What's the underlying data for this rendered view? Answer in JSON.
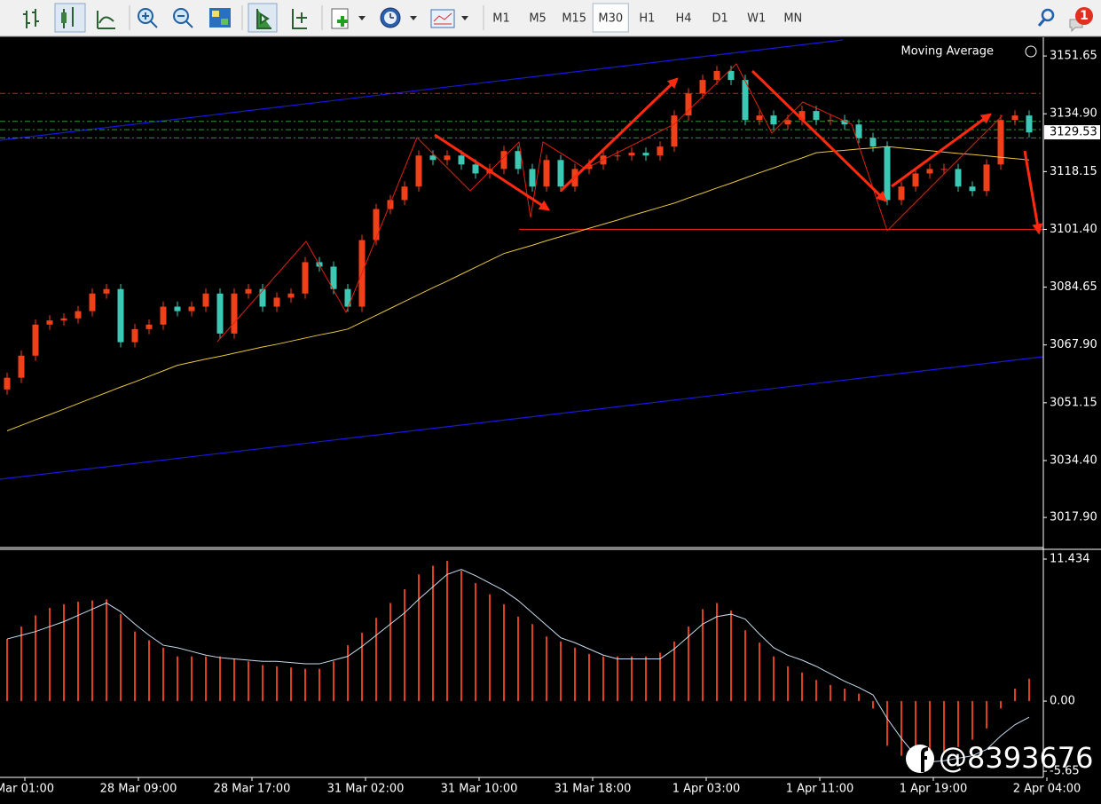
{
  "toolbar": {
    "timeframes": [
      "M1",
      "M5",
      "M15",
      "M30",
      "H1",
      "H4",
      "D1",
      "W1",
      "MN"
    ],
    "active_timeframe": "M30",
    "notifications": 1
  },
  "watermark": "@8393676",
  "chart_data": [
    {
      "type": "candlestick",
      "indicator": "Moving Average",
      "open": [
        3055.0,
        3058.4,
        3064.8,
        3073.8,
        3075.0,
        3075.6,
        3077.7,
        3082.8,
        3084.1,
        3068.7,
        3072.5,
        3073.8,
        3079.0,
        3077.7,
        3079.0,
        3082.8,
        3071.2,
        3082.8,
        3084.1,
        3079.0,
        3081.6,
        3082.8,
        3091.9,
        3090.6,
        3084.1,
        3079.0,
        3098.3,
        3107.3,
        3109.9,
        3113.8,
        3122.8,
        3121.5,
        3122.8,
        3120.2,
        3117.6,
        3118.9,
        3124.1,
        3118.9,
        3113.8,
        3121.5,
        3113.8,
        3118.9,
        3120.2,
        3122.8,
        3122.8,
        3123.6,
        3122.8,
        3125.4,
        3134.4,
        3140.8,
        3144.7,
        3147.3,
        3144.7,
        3133.1,
        3134.4,
        3131.8,
        3133.1,
        3135.7,
        3133.1,
        3133.1,
        3131.8,
        3127.9,
        3125.4,
        3109.9,
        3113.8,
        3117.6,
        3118.9,
        3118.9,
        3113.8,
        3112.5,
        3120.2,
        3133.1,
        3134.4
      ],
      "high": [
        3059.9,
        3066.3,
        3075.3,
        3076.5,
        3077.1,
        3079.2,
        3084.3,
        3085.6,
        3085.6,
        3074.0,
        3075.3,
        3080.5,
        3080.5,
        3080.5,
        3084.3,
        3084.3,
        3084.3,
        3085.6,
        3085.6,
        3083.1,
        3084.3,
        3093.4,
        3093.4,
        3092.1,
        3085.6,
        3099.8,
        3108.8,
        3111.4,
        3115.3,
        3124.3,
        3124.3,
        3124.3,
        3124.3,
        3121.7,
        3120.4,
        3125.6,
        3125.6,
        3120.4,
        3123.0,
        3123.0,
        3120.4,
        3121.7,
        3124.3,
        3124.3,
        3125.1,
        3125.1,
        3126.9,
        3135.9,
        3142.3,
        3146.2,
        3148.8,
        3148.8,
        3146.2,
        3135.9,
        3135.9,
        3134.6,
        3137.2,
        3137.2,
        3134.6,
        3134.6,
        3133.3,
        3129.4,
        3126.9,
        3115.3,
        3119.1,
        3120.4,
        3120.4,
        3120.4,
        3115.3,
        3121.7,
        3134.6,
        3135.9,
        3135.9
      ],
      "low": [
        3053.5,
        3056.9,
        3063.3,
        3072.3,
        3073.5,
        3074.1,
        3076.2,
        3081.3,
        3067.2,
        3067.2,
        3071.0,
        3072.3,
        3076.2,
        3076.2,
        3077.5,
        3069.7,
        3069.7,
        3081.3,
        3077.5,
        3077.5,
        3080.1,
        3081.3,
        3089.1,
        3082.6,
        3077.5,
        3077.5,
        3096.8,
        3105.8,
        3108.4,
        3112.3,
        3120.0,
        3120.0,
        3118.7,
        3116.1,
        3116.1,
        3117.4,
        3117.4,
        3112.3,
        3112.3,
        3112.3,
        3112.3,
        3117.4,
        3118.7,
        3121.3,
        3121.3,
        3121.3,
        3121.3,
        3123.9,
        3132.9,
        3139.3,
        3143.2,
        3143.2,
        3131.6,
        3131.6,
        3130.3,
        3130.3,
        3131.6,
        3131.6,
        3131.6,
        3130.3,
        3126.4,
        3123.9,
        3108.4,
        3108.4,
        3112.3,
        3116.1,
        3117.4,
        3112.3,
        3111.0,
        3111.0,
        3118.7,
        3131.6,
        3128.0
      ],
      "close": [
        3058.4,
        3064.8,
        3073.8,
        3075.0,
        3075.6,
        3077.7,
        3082.8,
        3084.1,
        3068.7,
        3072.5,
        3073.8,
        3079.0,
        3077.7,
        3079.0,
        3082.8,
        3071.2,
        3082.8,
        3084.1,
        3079.0,
        3081.6,
        3082.8,
        3091.9,
        3090.6,
        3084.1,
        3079.0,
        3098.3,
        3107.3,
        3109.9,
        3113.8,
        3122.8,
        3121.5,
        3122.8,
        3120.2,
        3117.6,
        3118.9,
        3124.1,
        3118.9,
        3113.8,
        3121.5,
        3113.8,
        3118.9,
        3120.2,
        3122.8,
        3122.8,
        3123.6,
        3122.8,
        3125.4,
        3134.4,
        3140.8,
        3144.7,
        3147.3,
        3144.7,
        3133.1,
        3134.4,
        3131.8,
        3133.1,
        3135.7,
        3133.1,
        3133.1,
        3131.8,
        3127.9,
        3125.4,
        3109.9,
        3113.8,
        3117.6,
        3118.9,
        3118.9,
        3113.8,
        3112.5,
        3120.2,
        3133.1,
        3134.4,
        3129.5
      ],
      "up_color": "#f0401a",
      "down_color": "#3cc8b4",
      "ma": {
        "color": "#e8c840",
        "values": [
          3043.0,
          3044.6,
          3046.2,
          3047.7,
          3049.3,
          3050.9,
          3052.5,
          3054.1,
          3055.7,
          3057.2,
          3058.8,
          3060.4,
          3062.0,
          3062.9,
          3063.8,
          3064.6,
          3065.5,
          3066.4,
          3067.3,
          3068.1,
          3069.0,
          3069.9,
          3070.8,
          3071.6,
          3072.5,
          3074.5,
          3076.5,
          3078.5,
          3080.5,
          3082.5,
          3084.5,
          3086.4,
          3088.4,
          3090.4,
          3092.4,
          3094.4,
          3095.6,
          3096.8,
          3098.1,
          3099.3,
          3100.5,
          3101.7,
          3102.9,
          3104.1,
          3105.4,
          3106.6,
          3107.8,
          3109.0,
          3110.5,
          3111.9,
          3113.4,
          3114.8,
          3116.3,
          3117.8,
          3119.2,
          3120.7,
          3122.1,
          3123.6,
          3124.0,
          3124.3,
          3124.7,
          3125.0,
          3125.4,
          3125.0,
          3124.6,
          3124.2,
          3123.8,
          3123.4,
          3123.1,
          3122.7,
          3122.3,
          3121.9,
          3121.5
        ]
      },
      "ylim": [
        3009.7,
        3156.3
      ],
      "yticks": [
        3151.65,
        {
          "value": 3134.9,
          "label": "3134.90"
        },
        3118.15,
        {
          "value": 3101.4,
          "label": "3101.40"
        },
        3084.65,
        {
          "value": 3067.9,
          "label": "3067.90"
        },
        3051.15,
        {
          "value": 3034.4,
          "label": "3034.40"
        },
        {
          "value": 3017.9,
          "label": "3017.90"
        }
      ],
      "current_price": 3129.53,
      "levels": [
        {
          "price": 3140.8,
          "color": "#d02010"
        },
        {
          "price": 3132.7,
          "color": "#2a9a30"
        },
        {
          "price": 3130.3,
          "color": "#2a9a30"
        },
        {
          "price": 3127.9,
          "color": "#2a9a30"
        }
      ],
      "support": {
        "price": 3101.4,
        "color": "#e02010"
      }
    },
    {
      "type": "bar",
      "values": [
        5.0,
        6.0,
        6.9,
        7.5,
        7.8,
        8.0,
        8.1,
        8.2,
        7.0,
        5.6,
        4.9,
        4.3,
        3.6,
        3.6,
        3.6,
        3.6,
        3.4,
        3.2,
        2.9,
        2.8,
        2.7,
        2.6,
        2.6,
        3.2,
        4.5,
        5.5,
        6.7,
        7.9,
        9.0,
        10.2,
        10.9,
        11.3,
        10.5,
        9.5,
        8.6,
        7.8,
        6.8,
        6.2,
        5.2,
        4.8,
        4.3,
        3.8,
        3.6,
        3.6,
        3.6,
        3.6,
        3.9,
        4.8,
        6.0,
        7.4,
        7.9,
        7.3,
        5.7,
        4.7,
        3.6,
        2.8,
        2.3,
        1.7,
        1.3,
        1.0,
        0.6,
        -0.6,
        -3.6,
        -4.4,
        -4.6,
        -4.5,
        -4.2,
        -3.7,
        -3.1,
        -2.2,
        -0.6,
        1.0,
        1.8
      ],
      "color": "#e0401c",
      "signal": {
        "color": "#c8dcf0",
        "values": [
          5.0,
          5.3,
          5.6,
          6.0,
          6.4,
          6.9,
          7.4,
          7.9,
          7.2,
          6.2,
          5.3,
          4.5,
          4.3,
          4.0,
          3.7,
          3.5,
          3.4,
          3.3,
          3.2,
          3.2,
          3.1,
          3.0,
          3.0,
          3.3,
          3.6,
          4.4,
          5.3,
          6.2,
          7.1,
          8.2,
          9.2,
          10.2,
          10.6,
          10.1,
          9.5,
          8.9,
          8.1,
          7.1,
          6.1,
          5.1,
          4.7,
          4.2,
          3.7,
          3.4,
          3.4,
          3.4,
          3.4,
          4.2,
          5.2,
          6.2,
          6.8,
          7.0,
          6.6,
          5.4,
          4.3,
          3.7,
          3.3,
          2.8,
          2.2,
          1.6,
          1.1,
          0.5,
          -1.4,
          -3.0,
          -4.4,
          -4.9,
          -4.8,
          -4.6,
          -4.4,
          -3.9,
          -2.8,
          -1.9,
          -1.3
        ]
      },
      "ylim": [
        -6.07,
        12.15
      ],
      "yticks": [
        11.434,
        {
          "value": 0,
          "label": "0.00"
        },
        {
          "value": -5.65,
          "label": "-5.65"
        }
      ],
      "x_labels": [
        "Mar 01:00",
        "28 Mar 09:00",
        "28 Mar 17:00",
        "31 Mar 02:00",
        "31 Mar 10:00",
        "31 Mar 18:00",
        "1 Apr 03:00",
        "1 Apr 11:00",
        "1 Apr 19:00",
        "2 Apr 04:00"
      ]
    }
  ]
}
